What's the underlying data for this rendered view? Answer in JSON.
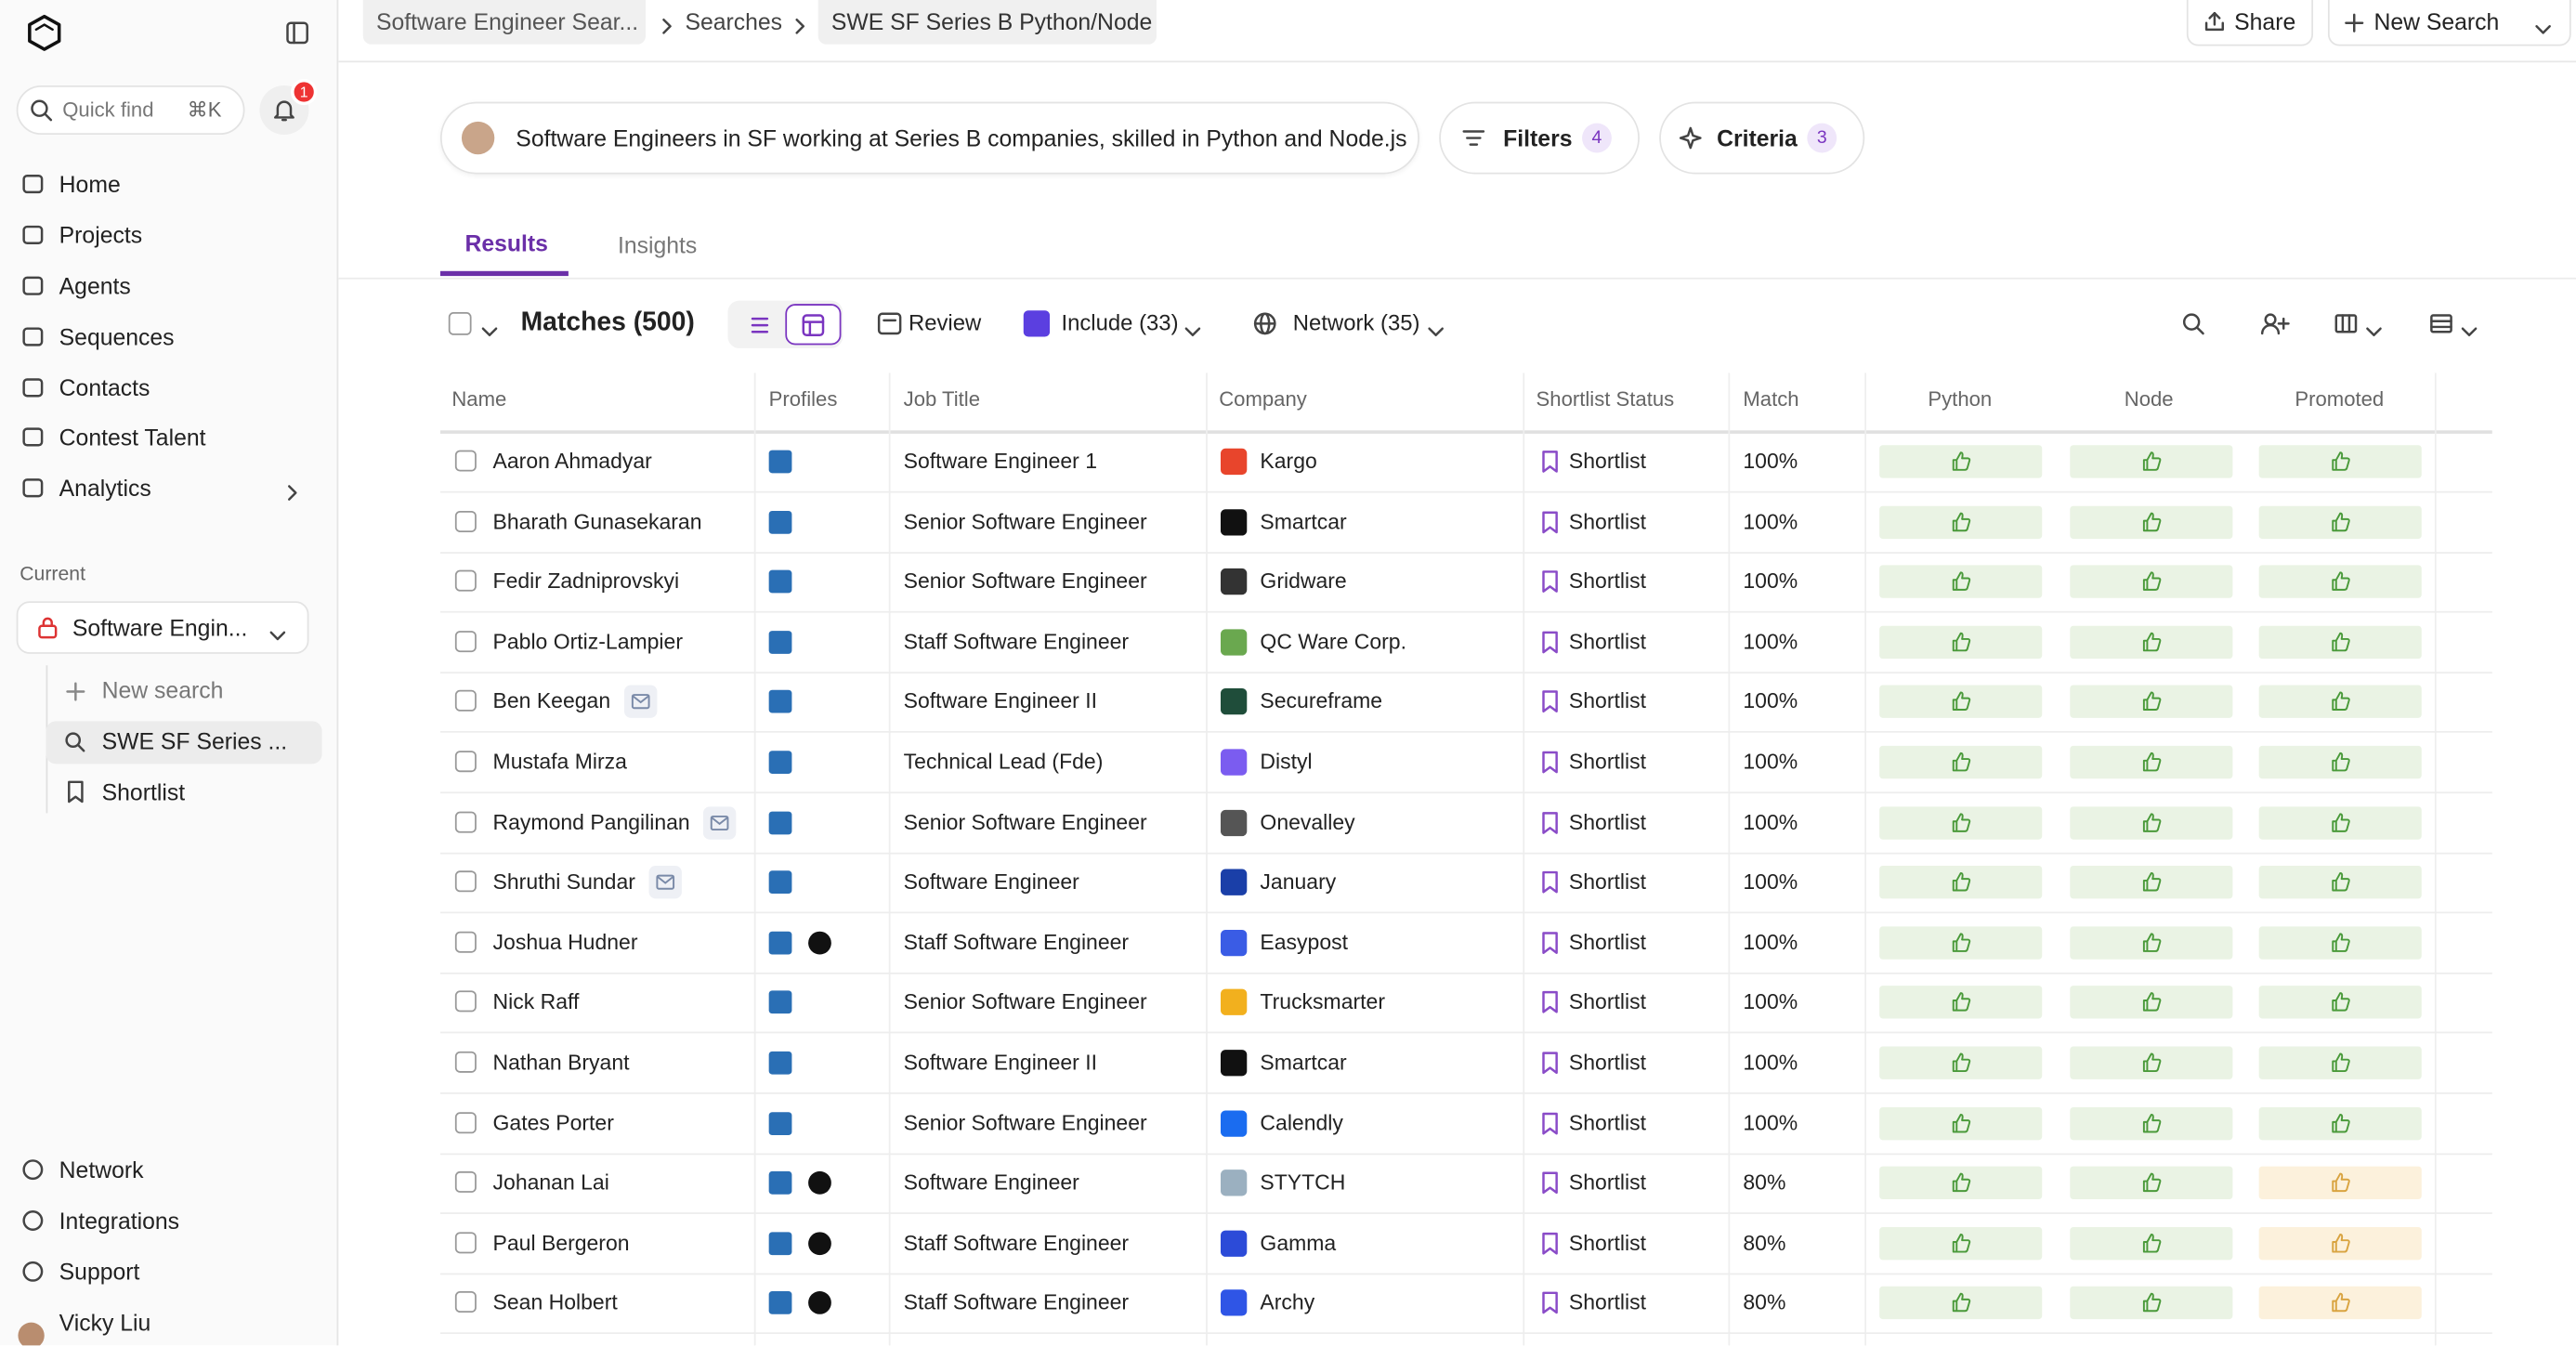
{
  "sidebar": {
    "quick_find": "Quick find",
    "shortcut": "⌘K",
    "badge": "1",
    "nav": [
      "Home",
      "Projects",
      "Agents",
      "Sequences",
      "Contacts",
      "Contest Talent",
      "Analytics"
    ],
    "current_label": "Current",
    "current_project": "Software Engin...",
    "tree": [
      "New search",
      "SWE SF Series ...",
      "Shortlist"
    ],
    "bottom": [
      "Network",
      "Integrations",
      "Support"
    ],
    "user": "Vicky Liu"
  },
  "header": {
    "breadcrumbs": [
      "Software Engineer Sear...",
      "Searches",
      "SWE SF Series B Python/Node"
    ],
    "share": "Share",
    "new_search": "New Search"
  },
  "query": {
    "text": "Software Engineers in SF working at Series B companies, skilled in Python and Node.js",
    "filters": "Filters",
    "filters_count": 4,
    "criteria": "Criteria",
    "criteria_count": 3
  },
  "tabs": [
    "Results",
    "Insights"
  ],
  "toolbar": {
    "matches": "Matches (500)",
    "review": "Review",
    "include": "Include (33)",
    "network": "Network (35)"
  },
  "table": {
    "columns": [
      "Name",
      "Profiles",
      "Job Title",
      "Company",
      "Shortlist Status",
      "Match",
      "Python",
      "Node",
      "Promoted"
    ],
    "rows": [
      {
        "name": "Aaron Ahmadyar",
        "email": false,
        "github": false,
        "job_title": "Software Engineer 1",
        "company": "Kargo",
        "logo_color": "#e8452c",
        "status": "Shortlist",
        "match": "100%",
        "fills": [
          "#eaf3e4",
          "#eaf3e4",
          "#eaf3e4"
        ]
      },
      {
        "name": "Bharath Gunasekaran",
        "email": false,
        "github": false,
        "job_title": "Senior Software Engineer",
        "company": "Smartcar",
        "logo_color": "#111111",
        "status": "Shortlist",
        "match": "100%",
        "fills": [
          "#eaf3e4",
          "#eaf3e4",
          "#eaf3e4"
        ]
      },
      {
        "name": "Fedir Zadniprovskyi",
        "email": false,
        "github": false,
        "job_title": "Senior Software Engineer",
        "company": "Gridware",
        "logo_color": "#333333",
        "status": "Shortlist",
        "match": "100%",
        "fills": [
          "#eaf3e4",
          "#eaf3e4",
          "#eaf3e4"
        ]
      },
      {
        "name": "Pablo Ortiz-Lampier",
        "email": false,
        "github": false,
        "job_title": "Staff Software Engineer",
        "company": "QC Ware Corp.",
        "logo_color": "#6aa84f",
        "status": "Shortlist",
        "match": "100%",
        "fills": [
          "#eaf3e4",
          "#eaf3e4",
          "#eaf3e4"
        ]
      },
      {
        "name": "Ben Keegan",
        "email": true,
        "github": false,
        "job_title": "Software Engineer II",
        "company": "Secureframe",
        "logo_color": "#1f4d3a",
        "status": "Shortlist",
        "match": "100%",
        "fills": [
          "#eaf3e4",
          "#eaf3e4",
          "#eaf3e4"
        ]
      },
      {
        "name": "Mustafa Mirza",
        "email": false,
        "github": false,
        "job_title": "Technical Lead (Fde)",
        "company": "Distyl",
        "logo_color": "#7b5cf0",
        "status": "Shortlist",
        "match": "100%",
        "fills": [
          "#eaf3e4",
          "#eaf3e4",
          "#eaf3e4"
        ]
      },
      {
        "name": "Raymond Pangilinan",
        "email": true,
        "github": false,
        "job_title": "Senior Software Engineer",
        "company": "Onevalley",
        "logo_color": "#555555",
        "status": "Shortlist",
        "match": "100%",
        "fills": [
          "#eaf3e4",
          "#eaf3e4",
          "#eaf3e4"
        ]
      },
      {
        "name": "Shruthi Sundar",
        "email": true,
        "github": false,
        "job_title": "Software Engineer",
        "company": "January",
        "logo_color": "#1a3fa8",
        "status": "Shortlist",
        "match": "100%",
        "fills": [
          "#eaf3e4",
          "#eaf3e4",
          "#eaf3e4"
        ]
      },
      {
        "name": "Joshua Hudner",
        "email": false,
        "github": true,
        "job_title": "Staff Software Engineer",
        "company": "Easypost",
        "logo_color": "#3a5ce5",
        "status": "Shortlist",
        "match": "100%",
        "fills": [
          "#eaf3e4",
          "#eaf3e4",
          "#eaf3e4"
        ]
      },
      {
        "name": "Nick Raff",
        "email": false,
        "github": false,
        "job_title": "Senior Software Engineer",
        "company": "Trucksmarter",
        "logo_color": "#f2b01e",
        "status": "Shortlist",
        "match": "100%",
        "fills": [
          "#eaf3e4",
          "#eaf3e4",
          "#eaf3e4"
        ]
      },
      {
        "name": "Nathan Bryant",
        "email": false,
        "github": false,
        "job_title": "Software Engineer II",
        "company": "Smartcar",
        "logo_color": "#111111",
        "status": "Shortlist",
        "match": "100%",
        "fills": [
          "#eaf3e4",
          "#eaf3e4",
          "#eaf3e4"
        ]
      },
      {
        "name": "Gates Porter",
        "email": false,
        "github": false,
        "job_title": "Senior Software Engineer",
        "company": "Calendly",
        "logo_color": "#1a6cf0",
        "status": "Shortlist",
        "match": "100%",
        "fills": [
          "#eaf3e4",
          "#eaf3e4",
          "#eaf3e4"
        ]
      },
      {
        "name": "Johanan Lai",
        "email": false,
        "github": true,
        "job_title": "Software Engineer",
        "company": "STYTCH",
        "logo_color": "#9bb0c0",
        "status": "Shortlist",
        "match": "80%",
        "fills": [
          "#eaf3e4",
          "#eaf3e4",
          "#fcf1dc"
        ]
      },
      {
        "name": "Paul Bergeron",
        "email": false,
        "github": true,
        "job_title": "Staff Software Engineer",
        "company": "Gamma",
        "logo_color": "#2c4bd8",
        "status": "Shortlist",
        "match": "80%",
        "fills": [
          "#eaf3e4",
          "#eaf3e4",
          "#fcf1dc"
        ]
      },
      {
        "name": "Sean Holbert",
        "email": false,
        "github": true,
        "job_title": "Staff Software Engineer",
        "company": "Archy",
        "logo_color": "#2f55e6",
        "status": "Shortlist",
        "match": "80%",
        "fills": [
          "#eaf3e4",
          "#eaf3e4",
          "#fcf1dc"
        ]
      }
    ]
  }
}
